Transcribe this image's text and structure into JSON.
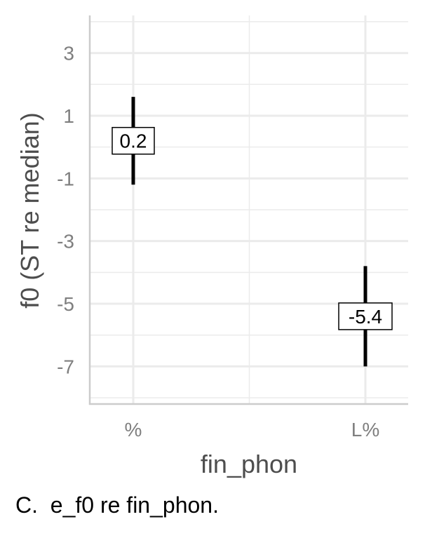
{
  "chart_data": {
    "type": "errorbar",
    "xlabel": "fin_phon",
    "ylabel": "f0 (ST re median)",
    "categories": [
      "%",
      "L%"
    ],
    "points": [
      {
        "category": "%",
        "value": 0.2,
        "lower": -1.2,
        "upper": 1.6,
        "label": "0.2"
      },
      {
        "category": "L%",
        "value": -5.4,
        "lower": -7.0,
        "upper": -3.8,
        "label": "-5.4"
      }
    ],
    "yticks": [
      3,
      1,
      -1,
      -3,
      -5,
      -7
    ],
    "ylim": [
      -8.2,
      4.2
    ],
    "grid": true
  },
  "caption": "C.  e_f0 re fin_phon.",
  "colors": {
    "grid": "#ebebeb",
    "axis": "#cccccc",
    "tick_text": "#7f7f7f",
    "title_text": "#4d4d4d",
    "mark": "#000000"
  }
}
